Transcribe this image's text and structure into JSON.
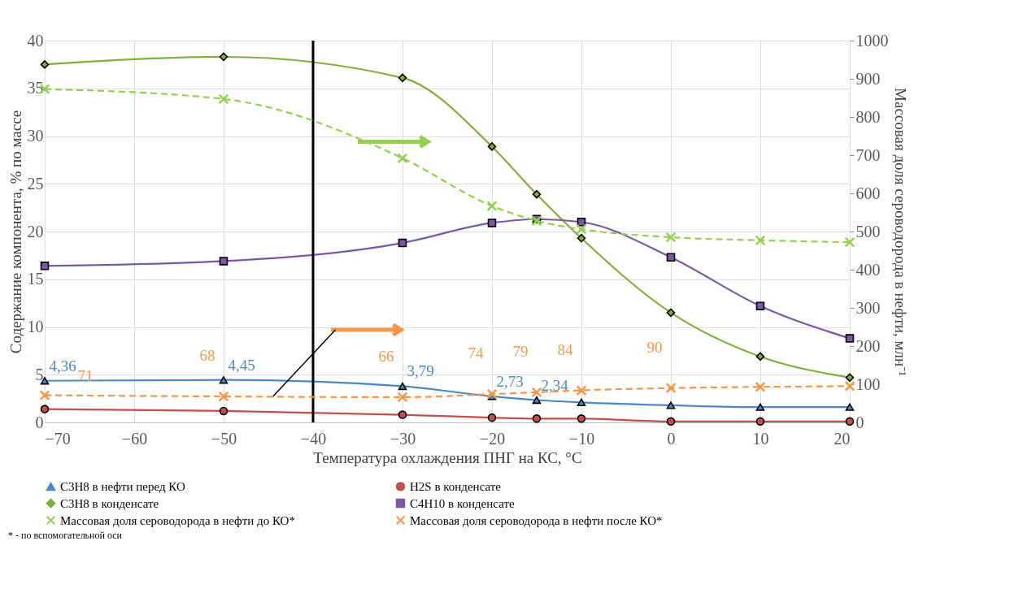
{
  "chart_data": {
    "type": "line",
    "xlabel": "Температура охлаждения ПНГ на КС, °С",
    "ylabel": "Содержание компонента, % по массе",
    "y2label": "Массовая доля сероводорода в нефти, млн⁻¹",
    "x": [
      -70,
      -50,
      -30,
      -20,
      -15,
      -10,
      0,
      10,
      20
    ],
    "xlim": [
      -70,
      20
    ],
    "xticks": [
      -70,
      -60,
      -50,
      -40,
      -30,
      -20,
      -10,
      0,
      10,
      20
    ],
    "ylim": [
      0,
      40
    ],
    "yticks": [
      0,
      5,
      10,
      15,
      20,
      25,
      30,
      35,
      40
    ],
    "y2lim": [
      0,
      1000
    ],
    "y2ticks": [
      0,
      100,
      200,
      300,
      400,
      500,
      600,
      700,
      800,
      900,
      1000
    ],
    "grid": true,
    "legend": "bottom",
    "series": [
      {
        "name": "C3H8 в нефти перед КО",
        "color": "#4a89c8",
        "marker": "triangle",
        "line_style": "solid",
        "values": [
          4.36,
          4.45,
          3.79,
          2.73,
          2.34,
          2.1,
          1.8,
          1.6,
          1.6
        ],
        "value_labels": [
          "4,36",
          "4,45",
          "3,79",
          "2,73",
          "2,34",
          null,
          null,
          null,
          null
        ]
      },
      {
        "name": "H2S в конденсате",
        "color": "#c0504d",
        "marker": "circle",
        "line_style": "solid",
        "values": [
          1.4,
          1.2,
          0.8,
          0.5,
          0.4,
          0.4,
          0.1,
          0.1,
          0.1
        ]
      },
      {
        "name": "C3H8 в конденсате",
        "color": "#7fb03c",
        "marker": "diamond",
        "line_style": "solid",
        "values": [
          37.5,
          38.3,
          36.1,
          28.9,
          23.9,
          19.3,
          11.5,
          6.9,
          4.7
        ]
      },
      {
        "name": "C4H10 в конденсате",
        "color": "#7b57a6",
        "marker": "square",
        "line_style": "solid",
        "values": [
          16.4,
          16.9,
          18.8,
          20.9,
          21.3,
          21.0,
          17.3,
          12.2,
          8.8
        ]
      },
      {
        "name": "Массовая доля сероводорода в нефти до КО*",
        "color": "#92d050",
        "marker": "cross",
        "line_style": "dashed",
        "axis": "y2",
        "values": [
          873,
          847,
          692,
          567,
          528,
          506,
          485,
          477,
          472
        ]
      },
      {
        "name": "Массовая доля сероводорода в нефти после КО*",
        "color": "#f79646",
        "marker": "cross",
        "line_style": "dashed",
        "axis": "y2",
        "values": [
          71,
          68,
          66,
          74,
          79,
          84,
          90,
          93,
          95
        ],
        "value_labels": [
          "71",
          "68",
          "66",
          "74",
          "79",
          "84",
          "90",
          null,
          null
        ]
      }
    ],
    "ref_lines": [
      {
        "axis": "x",
        "value": -40,
        "color": "#000000",
        "line_style": "solid"
      }
    ],
    "annotations": [
      "* - по вспомогательной оси"
    ]
  }
}
